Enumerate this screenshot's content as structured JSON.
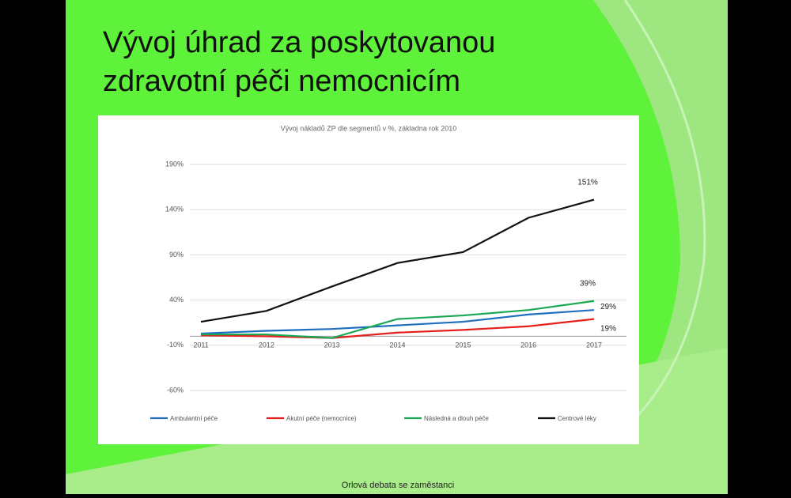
{
  "slide": {
    "title_lines": [
      "Vývoj úhrad za poskytovanou",
      "zdravotní péči nemocnicím"
    ],
    "footer": "Orlová debata se zaměstanci"
  },
  "chart_data": {
    "type": "line",
    "title": "Vývoj nákladů ZP dle segmentů v %, základna rok 2010",
    "categories": [
      "2011",
      "2012",
      "2013",
      "2014",
      "2015",
      "2016",
      "2017"
    ],
    "series": [
      {
        "name": "Ambulantní péče",
        "color": "#1f6fc0",
        "values": [
          3,
          6,
          8,
          12,
          16,
          24,
          29
        ],
        "value_labels": [
          null,
          null,
          null,
          null,
          null,
          null,
          "29%"
        ]
      },
      {
        "name": "Akutní péče (nemocnice)",
        "color": "#e3201b",
        "values": [
          1,
          0,
          -2,
          4,
          7,
          11,
          19
        ],
        "value_labels": [
          null,
          null,
          null,
          null,
          null,
          null,
          "19%"
        ]
      },
      {
        "name": "Následná a dlouh péče",
        "color": "#1ba855",
        "values": [
          2,
          2,
          -2,
          19,
          23,
          29,
          39
        ],
        "value_labels": [
          null,
          null,
          null,
          null,
          null,
          null,
          "39%"
        ]
      },
      {
        "name": "Centrové léky",
        "color": "#111111",
        "values": [
          16,
          28,
          55,
          81,
          93,
          131,
          151
        ],
        "value_labels": [
          null,
          null,
          null,
          null,
          null,
          null,
          "151%"
        ]
      }
    ],
    "ylim": [
      -60,
      190
    ],
    "yticks": [
      {
        "value": -60,
        "label": "-60%"
      },
      {
        "value": -10,
        "label": "-10%"
      },
      {
        "value": 40,
        "label": "40%"
      },
      {
        "value": 90,
        "label": "90%"
      },
      {
        "value": 140,
        "label": "140%"
      },
      {
        "value": 190,
        "label": "190%"
      }
    ],
    "grid": true,
    "legend": "bottom"
  }
}
